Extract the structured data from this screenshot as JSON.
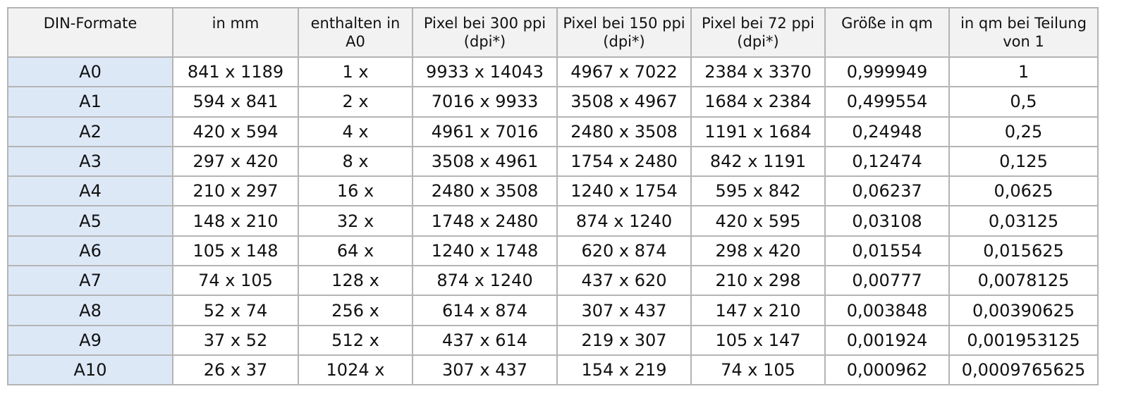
{
  "columns": [
    "DIN-Formate",
    "in mm",
    "enthalten in A0",
    "Pixel bei 300 ppi (dpi*)",
    "Pixel bei 150 ppi (dpi*)",
    "Pixel bei 72 ppi (dpi*)",
    "Größe in qm",
    "in qm bei Teilung von 1"
  ],
  "rows": [
    [
      "A0",
      "841 x 1189",
      "1 x",
      "9933 x 14043",
      "4967 x 7022",
      "2384 x 3370",
      "0,999949",
      "1"
    ],
    [
      "A1",
      "594 x 841",
      "2 x",
      "7016 x 9933",
      "3508 x 4967",
      "1684 x 2384",
      "0,499554",
      "0,5"
    ],
    [
      "A2",
      "420 x 594",
      "4 x",
      "4961 x 7016",
      "2480 x 3508",
      "1191 x 1684",
      "0,24948",
      "0,25"
    ],
    [
      "A3",
      "297 x 420",
      "8 x",
      "3508 x 4961",
      "1754 x 2480",
      "842 x 1191",
      "0,12474",
      "0,125"
    ],
    [
      "A4",
      "210 x 297",
      "16 x",
      "2480 x 3508",
      "1240 x 1754",
      "595 x 842",
      "0,06237",
      "0,0625"
    ],
    [
      "A5",
      "148 x 210",
      "32 x",
      "1748 x 2480",
      "874 x 1240",
      "420 x 595",
      "0,03108",
      "0,03125"
    ],
    [
      "A6",
      "105 x 148",
      "64 x",
      "1240 x 1748",
      "620 x 874",
      "298 x 420",
      "0,01554",
      "0,015625"
    ],
    [
      "A7",
      "74 x 105",
      "128 x",
      "874 x 1240",
      "437 x 620",
      "210 x 298",
      "0,00777",
      "0,0078125"
    ],
    [
      "A8",
      "52 x 74",
      "256 x",
      "614 x 874",
      "307 x 437",
      "147 x 210",
      "0,003848",
      "0,00390625"
    ],
    [
      "A9",
      "37 x 52",
      "512 x",
      "437 x 614",
      "219 x 307",
      "105 x 147",
      "0,001924",
      "0,001953125"
    ],
    [
      "A10",
      "26 x 37",
      "1024 x",
      "307 x 437",
      "154 x 219",
      "74 x 105",
      "0,000962",
      "0,0009765625"
    ]
  ]
}
